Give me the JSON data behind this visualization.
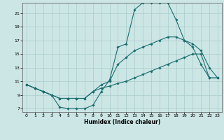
{
  "xlabel": "Humidex (Indice chaleur)",
  "bg_color": "#cce5e5",
  "grid_color": "#aacccc",
  "line_color": "#1a6e6e",
  "xlim": [
    -0.5,
    23.5
  ],
  "ylim": [
    6.5,
    22.5
  ],
  "yticks": [
    7,
    9,
    11,
    13,
    15,
    17,
    19,
    21
  ],
  "xticks": [
    0,
    1,
    2,
    3,
    4,
    5,
    6,
    7,
    8,
    9,
    10,
    11,
    12,
    13,
    14,
    15,
    16,
    17,
    18,
    19,
    20,
    21,
    22,
    23
  ],
  "line1_x": [
    0,
    1,
    2,
    3,
    4,
    5,
    6,
    7,
    8,
    9,
    10,
    11,
    12,
    13,
    14,
    15,
    16,
    17,
    18,
    19,
    20,
    21,
    22,
    23
  ],
  "line1_y": [
    10.5,
    10.0,
    9.5,
    9.0,
    7.2,
    7.0,
    7.0,
    7.0,
    7.5,
    9.5,
    11.2,
    16.0,
    16.5,
    21.5,
    22.5,
    22.5,
    22.5,
    22.5,
    20.0,
    17.0,
    16.0,
    13.5,
    11.5,
    11.5
  ],
  "line2_x": [
    0,
    1,
    2,
    3,
    4,
    5,
    6,
    7,
    8,
    9,
    10,
    11,
    12,
    13,
    14,
    15,
    16,
    17,
    18,
    19,
    20,
    21,
    22,
    23
  ],
  "line2_y": [
    10.5,
    10.0,
    9.5,
    9.0,
    8.5,
    8.5,
    8.5,
    8.5,
    9.5,
    10.5,
    11.0,
    13.5,
    14.5,
    15.5,
    16.0,
    16.5,
    17.0,
    17.5,
    17.5,
    17.0,
    16.5,
    15.5,
    13.0,
    11.5
  ],
  "line3_x": [
    0,
    1,
    2,
    3,
    4,
    5,
    6,
    7,
    8,
    9,
    10,
    11,
    12,
    13,
    14,
    15,
    16,
    17,
    18,
    19,
    20,
    21,
    22,
    23
  ],
  "line3_y": [
    10.5,
    10.0,
    9.5,
    9.0,
    8.5,
    8.5,
    8.5,
    8.5,
    9.5,
    10.0,
    10.3,
    10.7,
    11.0,
    11.5,
    12.0,
    12.5,
    13.0,
    13.5,
    14.0,
    14.5,
    15.0,
    15.0,
    11.5,
    11.5
  ]
}
